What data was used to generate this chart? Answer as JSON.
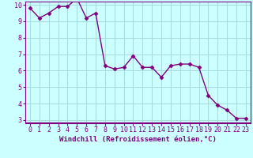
{
  "x": [
    0,
    1,
    2,
    3,
    4,
    5,
    6,
    7,
    8,
    9,
    10,
    11,
    12,
    13,
    14,
    15,
    16,
    17,
    18,
    19,
    20,
    21,
    22,
    23
  ],
  "y": [
    9.8,
    9.2,
    9.5,
    9.9,
    9.9,
    10.4,
    9.2,
    9.5,
    6.3,
    6.1,
    6.2,
    6.9,
    6.2,
    6.2,
    5.6,
    6.3,
    6.4,
    6.4,
    6.2,
    4.5,
    3.9,
    3.6,
    3.1,
    3.1
  ],
  "line_color": "#800080",
  "marker": "D",
  "marker_size": 2.5,
  "bg_color": "#ccffff",
  "grid_color": "#aadddd",
  "xlabel": "Windchill (Refroidissement éolien,°C)",
  "ylabel": "",
  "ylim_min": 3,
  "ylim_max": 10,
  "xlim_min": -0.5,
  "xlim_max": 23.5,
  "yticks": [
    3,
    4,
    5,
    6,
    7,
    8,
    9,
    10
  ],
  "xticks": [
    0,
    1,
    2,
    3,
    4,
    5,
    6,
    7,
    8,
    9,
    10,
    11,
    12,
    13,
    14,
    15,
    16,
    17,
    18,
    19,
    20,
    21,
    22,
    23
  ],
  "tick_color": "#800080",
  "xlabel_fontsize": 6.5,
  "tick_fontsize": 6,
  "linewidth": 1.0
}
